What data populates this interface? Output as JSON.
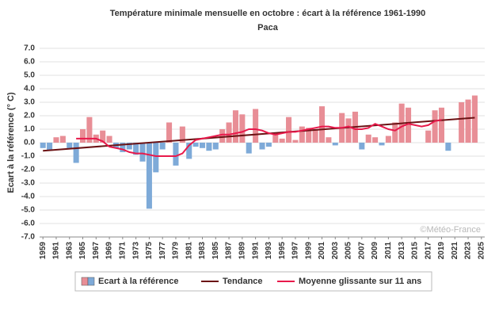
{
  "chart_data": {
    "type": "bar_line",
    "title": "Température minimale mensuelle en octobre : écart à la référence 1961-1990",
    "subtitle": "Paca",
    "y_label": "Ecart à la référence (° C)",
    "watermark": "©Météo-France",
    "x": [
      1959,
      1960,
      1961,
      1962,
      1963,
      1964,
      1965,
      1966,
      1967,
      1968,
      1969,
      1970,
      1971,
      1972,
      1973,
      1974,
      1975,
      1976,
      1977,
      1978,
      1979,
      1980,
      1981,
      1982,
      1983,
      1984,
      1985,
      1986,
      1987,
      1988,
      1989,
      1990,
      1991,
      1992,
      1993,
      1994,
      1995,
      1996,
      1997,
      1998,
      1999,
      2000,
      2001,
      2002,
      2003,
      2004,
      2005,
      2006,
      2007,
      2008,
      2009,
      2010,
      2011,
      2012,
      2013,
      2014,
      2015,
      2016,
      2017,
      2018,
      2019,
      2020,
      2021,
      2022,
      2023,
      2024,
      2025
    ],
    "xlim": [
      1958.5,
      2025.5
    ],
    "xticks": [
      1959,
      1961,
      1963,
      1965,
      1967,
      1969,
      1971,
      1973,
      1975,
      1977,
      1979,
      1981,
      1983,
      1985,
      1987,
      1989,
      1991,
      1993,
      1995,
      1997,
      1999,
      2001,
      2003,
      2005,
      2007,
      2009,
      2011,
      2013,
      2015,
      2017,
      2019,
      2021,
      2023,
      2025
    ],
    "ylim": [
      -7,
      7
    ],
    "yticks": [
      {
        "value": -7,
        "label": "-7.0"
      },
      {
        "value": -6,
        "label": "-6.0"
      },
      {
        "value": -5,
        "label": "-5.0"
      },
      {
        "value": -4,
        "label": "-4.0"
      },
      {
        "value": -3,
        "label": "-3.0"
      },
      {
        "value": -2,
        "label": "-2.0"
      },
      {
        "value": -1,
        "label": "-1.0"
      },
      {
        "value": 0,
        "label": "0.0"
      },
      {
        "value": 1,
        "label": "1.0"
      },
      {
        "value": 2,
        "label": "2.0"
      },
      {
        "value": 3,
        "label": "3.0"
      },
      {
        "value": 4,
        "label": "4.0"
      },
      {
        "value": 5,
        "label": "5.0"
      },
      {
        "value": 6,
        "label": "6.0"
      },
      {
        "value": 7,
        "label": "7.0"
      }
    ],
    "grid": true,
    "series": [
      {
        "name": "Ecart à la référence",
        "kind": "bar",
        "color": "#e88e96",
        "negative_color": "#7eaad8",
        "values": [
          -0.4,
          -0.6,
          0.4,
          0.5,
          -0.4,
          -1.5,
          1.0,
          1.9,
          0.6,
          0.9,
          0.5,
          -0.4,
          -0.7,
          -0.5,
          -0.9,
          -1.4,
          -4.9,
          -2.2,
          -0.5,
          1.5,
          -1.7,
          1.2,
          -1.2,
          -0.3,
          -0.4,
          -0.6,
          -0.5,
          1.0,
          1.5,
          2.4,
          2.1,
          -0.8,
          2.5,
          -0.5,
          -0.3,
          0.6,
          0.3,
          1.9,
          0.2,
          1.2,
          1.1,
          1.0,
          2.7,
          0.4,
          -0.2,
          2.2,
          1.8,
          2.3,
          -0.5,
          0.6,
          0.4,
          -0.2,
          0.5,
          1.5,
          2.9,
          2.6,
          null,
          null,
          0.9,
          2.4,
          2.6,
          -0.6,
          null,
          3.0,
          3.2,
          3.5,
          null
        ]
      },
      {
        "name": "Tendance",
        "kind": "line",
        "color": "#6b1214",
        "x": [
          1959,
          2024
        ],
        "values": [
          -0.6,
          1.85
        ]
      },
      {
        "name": "Moyenne glissante sur 11 ans",
        "kind": "line",
        "color": "#e8194b",
        "values": [
          null,
          null,
          null,
          null,
          null,
          0.3,
          0.3,
          0.3,
          0.3,
          0.1,
          -0.3,
          -0.4,
          -0.5,
          -0.7,
          -0.8,
          -0.8,
          -0.9,
          -1.0,
          -1.0,
          -1.0,
          -1.0,
          -0.8,
          -0.2,
          0.2,
          0.3,
          0.4,
          0.5,
          0.6,
          0.6,
          0.7,
          0.8,
          1.0,
          1.0,
          0.9,
          0.7,
          0.6,
          0.7,
          0.8,
          0.8,
          0.9,
          1.0,
          1.1,
          1.2,
          1.2,
          1.1,
          1.1,
          1.2,
          1.0,
          1.0,
          1.1,
          1.4,
          1.2,
          1.0,
          0.9,
          1.2,
          1.4,
          1.3,
          1.2,
          1.3,
          1.6,
          1.7,
          null,
          null,
          null,
          null,
          null,
          null
        ]
      }
    ]
  }
}
